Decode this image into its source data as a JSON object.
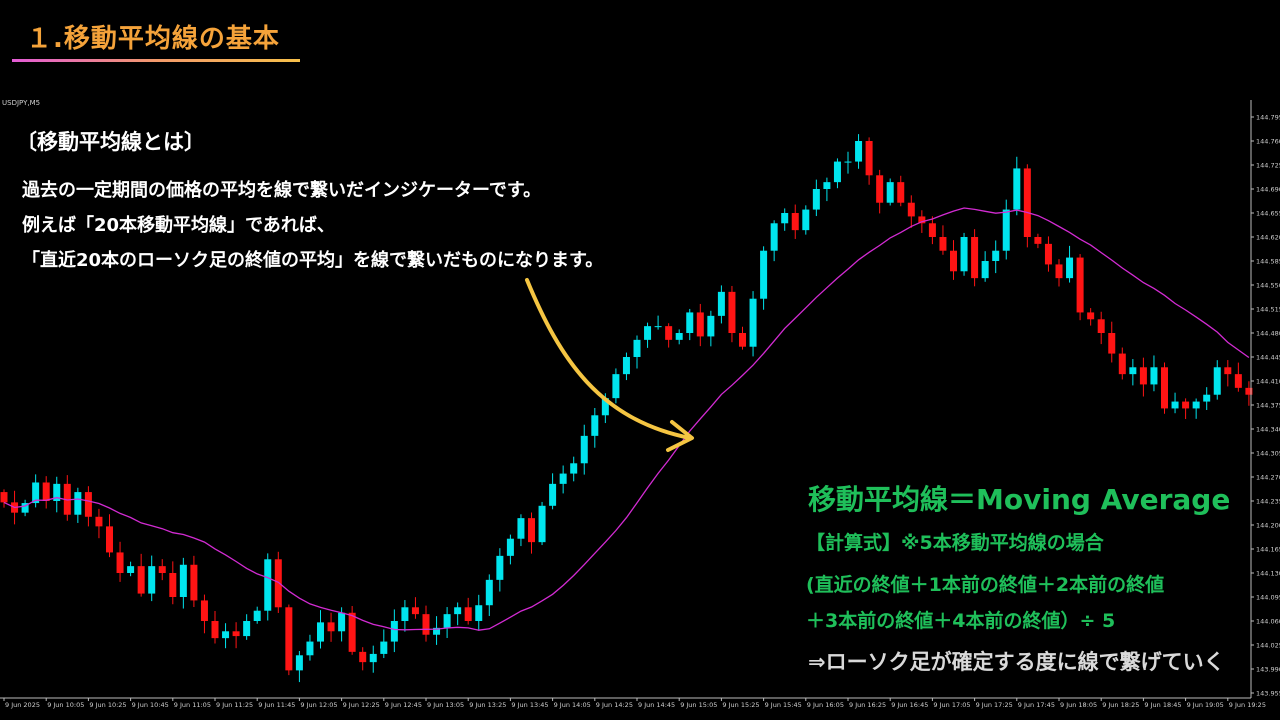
{
  "heading": "１.移動平均線の基本",
  "symbol": "USDJPY,M5",
  "definition": {
    "title": "〔移動平均線とは〕",
    "lines": [
      "過去の一定期間の価格の平均を線で繋いだインジケーターです。",
      "例えば「20本移動平均線」であれば、",
      "「直近20本のローソク足の終値の平均」を線で繋いだものになります。"
    ]
  },
  "formula": {
    "title": "移動平均線＝Moving Average",
    "header": "【計算式】※5本移動平均線の場合",
    "line1": "(直近の終値＋1本前の終値＋2本前の終値",
    "line2": "＋3本前の終値＋4本前の終値）÷ 5",
    "note": "⇒ローソク足が確定する度に線で繋げていく"
  },
  "colors": {
    "bull": "#00e5ee",
    "bear": "#ff1414",
    "ma": "#d22bd2",
    "arrow": "#f5c542",
    "text_green": "#1fbf5a",
    "heading": "#f5a33a"
  },
  "chart_data": {
    "type": "candlestick",
    "symbol": "USDJPY,M5",
    "ylim": [
      143.955,
      144.795
    ],
    "yticks": [
      "144.795",
      "144.760",
      "144.725",
      "144.690",
      "144.655",
      "144.620",
      "144.585",
      "144.550",
      "144.515",
      "144.480",
      "144.445",
      "144.410",
      "144.375",
      "144.340",
      "144.305",
      "144.270",
      "144.235",
      "144.200",
      "144.165",
      "144.130",
      "144.095",
      "144.060",
      "144.025",
      "143.990",
      "143.955"
    ],
    "xticks": [
      "9 Jun 2025",
      "9 Jun 10:05",
      "9 Jun 10:25",
      "9 Jun 10:45",
      "9 Jun 11:05",
      "9 Jun 11:25",
      "9 Jun 11:45",
      "9 Jun 12:05",
      "9 Jun 12:25",
      "9 Jun 12:45",
      "9 Jun 13:05",
      "9 Jun 13:25",
      "9 Jun 13:45",
      "9 Jun 14:05",
      "9 Jun 14:25",
      "9 Jun 14:45",
      "9 Jun 15:05",
      "9 Jun 15:25",
      "9 Jun 15:45",
      "9 Jun 16:05",
      "9 Jun 16:25",
      "9 Jun 16:45",
      "9 Jun 17:05",
      "9 Jun 17:25",
      "9 Jun 17:45",
      "9 Jun 18:05",
      "9 Jun 18:25",
      "9 Jun 18:45",
      "9 Jun 19:05",
      "9 Jun 19:25"
    ],
    "close": [
      144.233,
      144.218,
      144.232,
      144.262,
      144.235,
      144.26,
      144.215,
      144.248,
      144.212,
      144.198,
      144.16,
      144.13,
      144.14,
      144.1,
      144.14,
      144.13,
      144.095,
      144.142,
      144.09,
      144.06,
      144.035,
      144.045,
      144.038,
      144.06,
      144.075,
      144.15,
      144.08,
      143.988,
      144.01,
      144.03,
      144.058,
      144.045,
      144.072,
      144.015,
      144.0,
      144.012,
      144.03,
      144.06,
      144.08,
      144.07,
      144.04,
      144.05,
      144.07,
      144.08,
      144.06,
      144.083,
      144.12,
      144.155,
      144.18,
      144.21,
      144.175,
      144.228,
      144.26,
      144.275,
      144.29,
      144.33,
      144.36,
      144.385,
      144.42,
      144.445,
      144.47,
      144.49,
      144.49,
      144.47,
      144.48,
      144.51,
      144.475,
      144.505,
      144.54,
      144.48,
      144.46,
      144.53,
      144.6,
      144.64,
      144.655,
      144.63,
      144.66,
      144.69,
      144.7,
      144.73,
      144.73,
      144.76,
      144.71,
      144.67,
      144.7,
      144.67,
      144.65,
      144.64,
      144.62,
      144.6,
      144.57,
      144.62,
      144.56,
      144.585,
      144.6,
      144.66,
      144.72,
      144.62,
      144.61,
      144.58,
      144.56,
      144.59,
      144.51,
      144.5,
      144.48,
      144.45,
      144.42,
      144.43,
      144.405,
      144.43,
      144.37,
      144.38,
      144.37,
      144.38,
      144.39,
      144.43,
      144.42,
      144.4,
      144.39
    ]
  }
}
